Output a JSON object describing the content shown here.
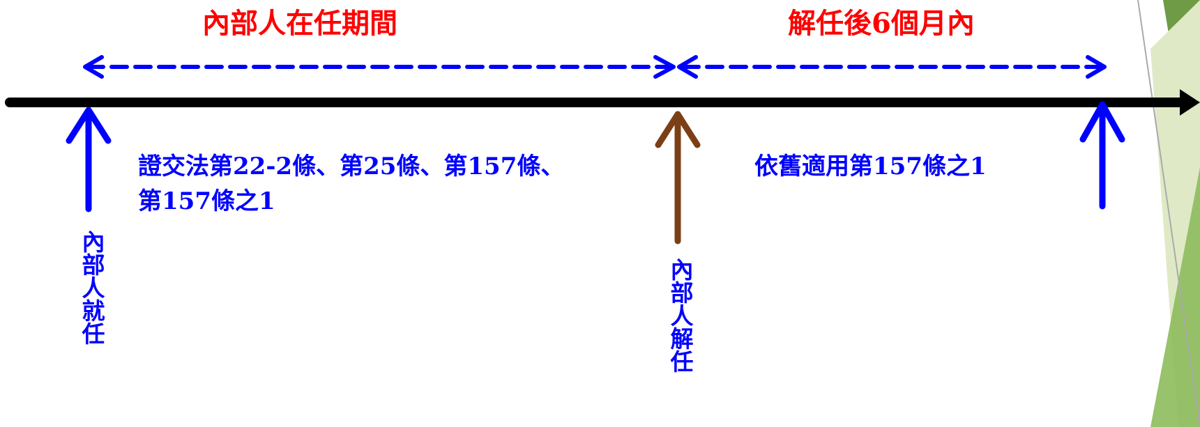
{
  "diagram": {
    "colors": {
      "period_text": "#ff0000",
      "rule_text": "#0000ff",
      "timeline": "#000000",
      "dashed_arrow": "#0000ff",
      "appointment_arrow": "#0000ff",
      "resignation_arrow": "#7b3f16",
      "deco_green": "#6f9a46"
    },
    "periods": [
      {
        "label": "內部人在任期間"
      },
      {
        "label": "解任後6個月內"
      }
    ],
    "rules": [
      {
        "lines": [
          "證交法第22-2條、第25條、第157條、",
          "第157條之1"
        ]
      },
      {
        "lines": [
          "依舊適用第157條之1"
        ]
      }
    ],
    "markers": [
      {
        "label": "內部人就任",
        "color": "#0000ff"
      },
      {
        "label": "內部人解任",
        "color": "#7b3f16"
      },
      {
        "label": "",
        "color": "#0000ff"
      }
    ]
  }
}
